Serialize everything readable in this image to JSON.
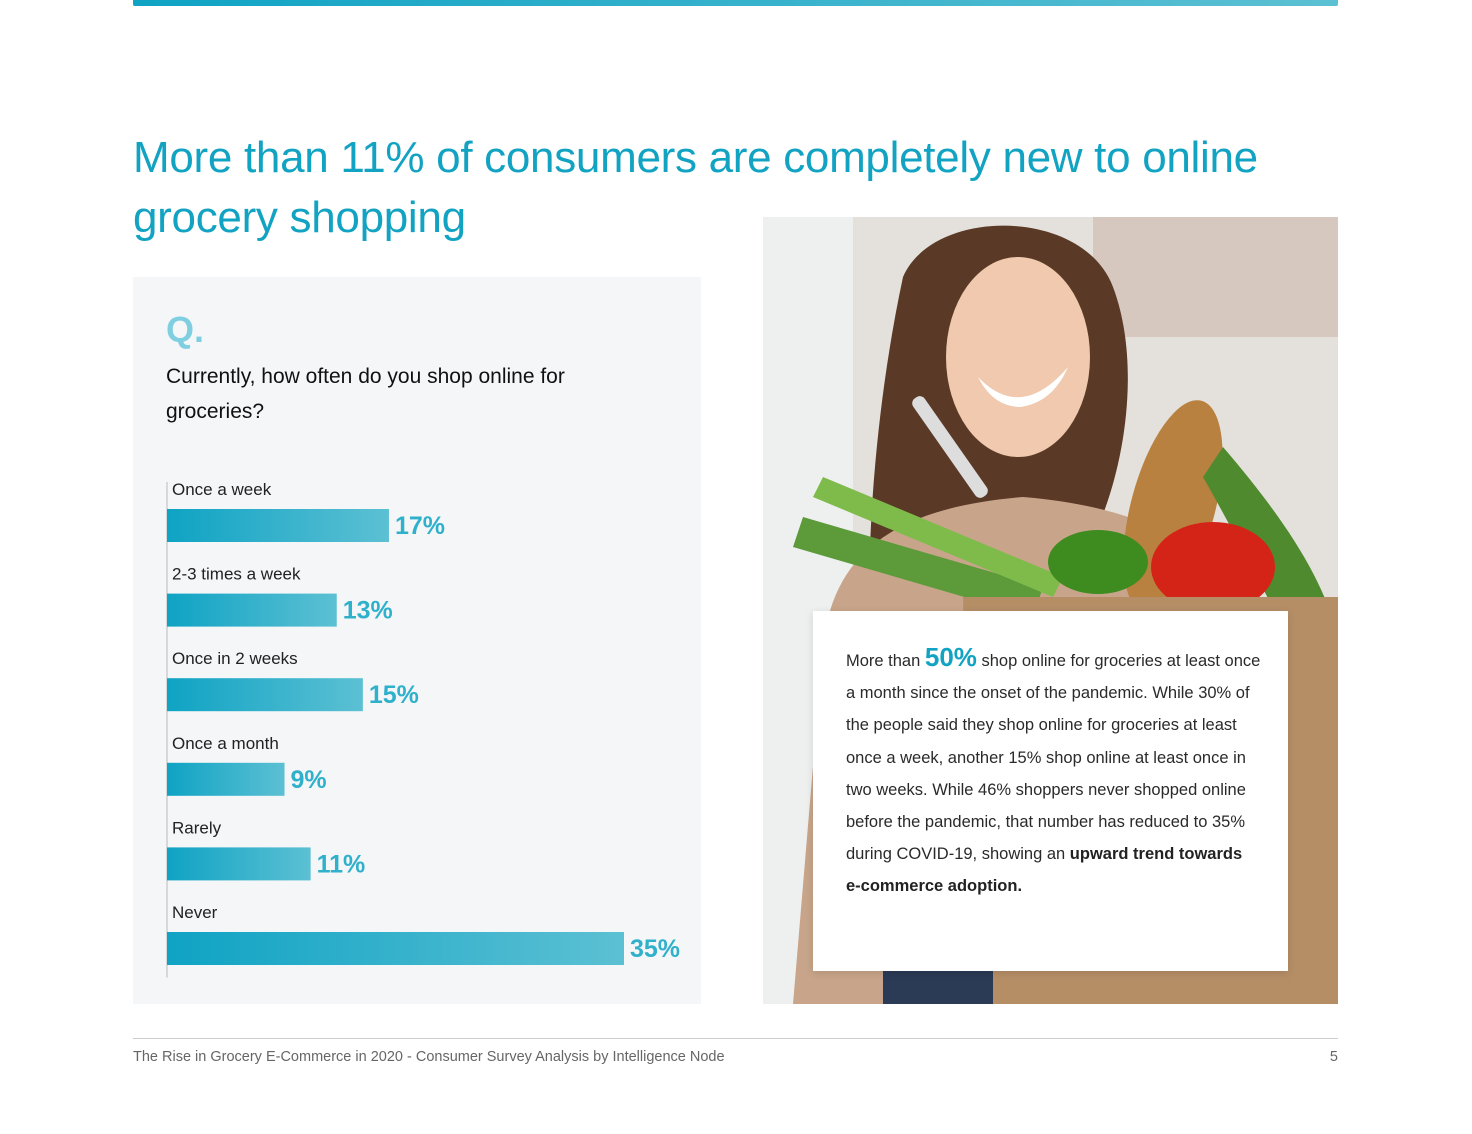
{
  "title": "More than 11% of consumers are completely new to online grocery shopping",
  "survey": {
    "q_mark": "Q.",
    "question": "Currently, how often do you shop online for groceries?"
  },
  "chart_data": {
    "type": "bar",
    "orientation": "horizontal",
    "categories": [
      "Once a week",
      "2-3 times a week",
      "Once in 2 weeks",
      "Once a month",
      "Rarely",
      "Never"
    ],
    "values": [
      17,
      13,
      15,
      9,
      11,
      35
    ],
    "value_labels": [
      "17%",
      "13%",
      "15%",
      "9%",
      "11%",
      "35%"
    ],
    "unit": "%",
    "xlim": [
      0,
      35
    ],
    "grid": false,
    "bar_gradient": [
      "#0fa3c4",
      "#5cc0d3"
    ],
    "label_color": "#2fb0cb"
  },
  "callout": {
    "pre": "More than ",
    "highlight": "50%",
    "body": " shop online for groceries at least once a month since the onset of the pandemic. While 30% of the people said they shop online for groceries at least once a week, another 15% shop online at least once in two weeks. While 46% shoppers never shopped online before the pandemic, that number has reduced to 35% during COVID-19, showing an ",
    "bold": "upward trend towards e-commerce adoption."
  },
  "footer": {
    "source": "The Rise in Grocery E-Commerce in 2020 - Consumer Survey Analysis by Intelligence Node",
    "page_number": "5"
  },
  "colors": {
    "accent": "#12a3c3",
    "panel_bg": "#f4f6f8"
  }
}
